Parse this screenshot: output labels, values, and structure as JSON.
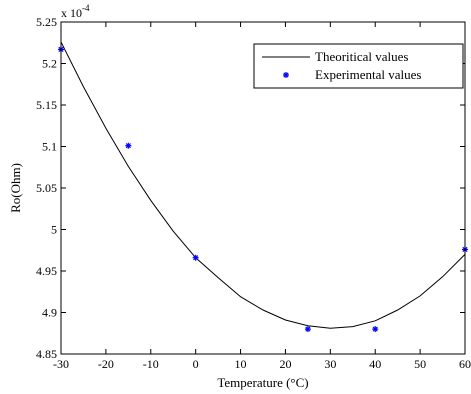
{
  "chart_data": {
    "type": "scatter",
    "multiplier": {
      "base": "x 10",
      "exponent": "-4"
    },
    "xlabel": "Temperature (°C)",
    "ylabel": "Ro(Ohm)",
    "xlim": [
      -30,
      60
    ],
    "ylim": [
      4.85,
      5.25
    ],
    "x_ticks": [
      -30,
      -20,
      -10,
      0,
      10,
      20,
      30,
      40,
      50,
      60
    ],
    "x_tick_labels": [
      "-30",
      "-20",
      "-10",
      "0",
      "10",
      "20",
      "30",
      "40",
      "50",
      "60"
    ],
    "y_ticks": [
      4.85,
      4.9,
      4.95,
      5.0,
      5.05,
      5.1,
      5.15,
      5.2,
      5.25
    ],
    "y_tick_labels": [
      "4.85",
      "4.9",
      "4.95",
      "5",
      "5.05",
      "5.1",
      "5.15",
      "5.2",
      "5.25"
    ],
    "grid": false,
    "legend_position": "top-right",
    "series": [
      {
        "name": "Theoritical values",
        "type": "line",
        "color": "#000000",
        "x": [
          -30,
          -25,
          -20,
          -15,
          -10,
          -5,
          0,
          5,
          10,
          15,
          20,
          25,
          30,
          35,
          40,
          45,
          50,
          55,
          60
        ],
        "y": [
          5.226,
          5.172,
          5.122,
          5.076,
          5.035,
          4.998,
          4.966,
          4.942,
          4.919,
          4.903,
          4.891,
          4.884,
          4.881,
          4.883,
          4.89,
          4.903,
          4.92,
          4.943,
          4.97
        ]
      },
      {
        "name": "Experimental values",
        "type": "scatter",
        "color": "#0000ff",
        "marker": "asterisk",
        "x": [
          -30,
          -15,
          0,
          25,
          40,
          60
        ],
        "y": [
          5.217,
          5.101,
          4.966,
          4.88,
          4.88,
          4.976
        ]
      }
    ]
  }
}
